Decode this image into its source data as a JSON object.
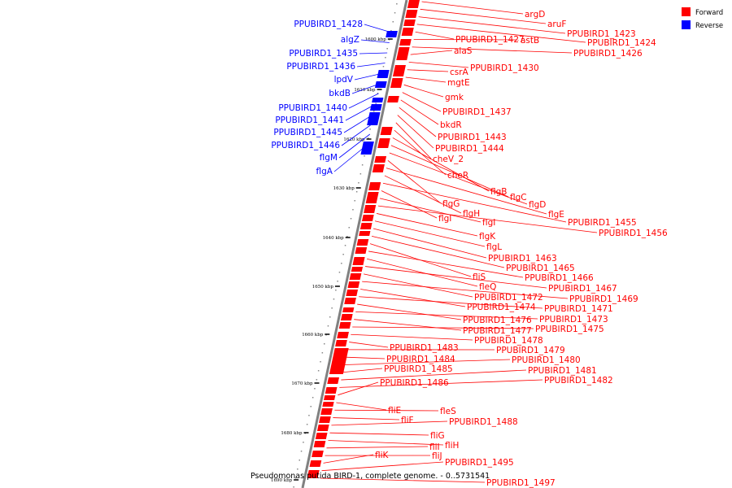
{
  "caption": "Pseudomonas putida BIRD-1, complete genome. - 0..5731541",
  "legend": [
    {
      "label": "Forward",
      "color": "#ff0000"
    },
    {
      "label": "Reverse",
      "color": "#0000ff"
    }
  ],
  "colors": {
    "forward": "#ff0000",
    "reverse": "#0000ff",
    "backbone": "#808080"
  },
  "ticks": [
    "1600 kbp",
    "1610 kbp",
    "1620 kbp",
    "1630 kbp",
    "1640 kbp",
    "1650 kbp",
    "1660 kbp",
    "1670 kbp",
    "1680 kbp",
    "1690 kbp"
  ],
  "forward_labels": [
    "argD",
    "aruF",
    "PPUBIRD1_1423",
    "PPUBIRD1_1424",
    "PPUBIRD1_1427",
    "astB",
    "PPUBIRD1_1426",
    "alaS",
    "PPUBIRD1_1430",
    "csrA",
    "mgtE",
    "gmk",
    "PPUBIRD1_1437",
    "bkdR",
    "PPUBIRD1_1443",
    "PPUBIRD1_1444",
    "cheV_2",
    "cheR",
    "flgB",
    "flgC",
    "flgD",
    "flgG",
    "flgE",
    "flgH",
    "PPUBIRD1_1455",
    "flgI",
    "flgI",
    "PPUBIRD1_1456",
    "flgK",
    "flgL",
    "PPUBIRD1_1463",
    "PPUBIRD1_1465",
    "fliS",
    "PPUBIRD1_1466",
    "fleQ",
    "PPUBIRD1_1467",
    "PPUBIRD1_1472",
    "PPUBIRD1_1469",
    "PPUBIRD1_1474",
    "PPUBIRD1_1471",
    "PPUBIRD1_1476",
    "PPUBIRD1_1473",
    "PPUBIRD1_1477",
    "PPUBIRD1_1475",
    "PPUBIRD1_1478",
    "PPUBIRD1_1483",
    "PPUBIRD1_1479",
    "PPUBIRD1_1484",
    "PPUBIRD1_1480",
    "PPUBIRD1_1485",
    "PPUBIRD1_1481",
    "PPUBIRD1_1482",
    "PPUBIRD1_1486",
    "fliE",
    "fleS",
    "fliF",
    "PPUBIRD1_1488",
    "fliG",
    "fliH",
    "fliI",
    "fliJ",
    "fliK",
    "PPUBIRD1_1495",
    "PPUBIRD1_1497"
  ],
  "reverse_labels": [
    "PPUBIRD1_1428",
    "algZ",
    "PPUBIRD1_1435",
    "PPUBIRD1_1436",
    "lpdV",
    "bkdB",
    "PPUBIRD1_1440",
    "PPUBIRD1_1441",
    "PPUBIRD1_1445",
    "PPUBIRD1_1446",
    "flgM",
    "flgA"
  ]
}
